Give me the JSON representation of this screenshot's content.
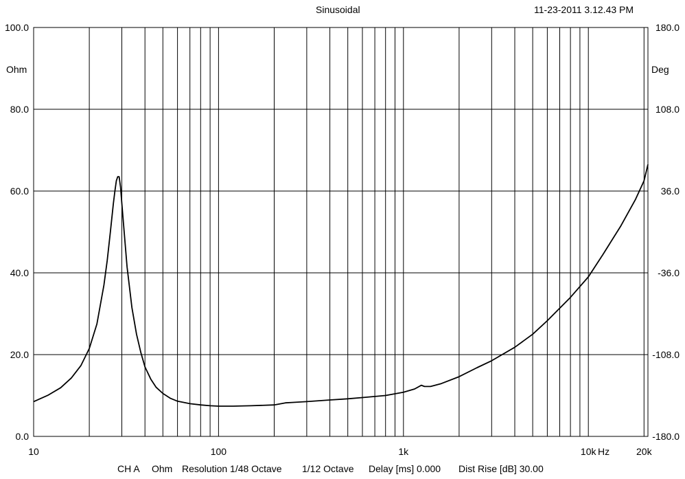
{
  "header": {
    "mode": "Sinusoidal",
    "timestamp": "11-23-2011 3.12.43 PM"
  },
  "axes": {
    "left_unit": "Ohm",
    "right_unit": "Deg",
    "x_unit": "Hz"
  },
  "footer": {
    "channel": "CH A",
    "unit": "Ohm",
    "resolution": "Resolution 1/48 Octave",
    "smoothing": "1/12 Octave",
    "delay": "Delay [ms] 0.000",
    "dist_rise": "Dist Rise [dB] 30.00"
  },
  "colors": {
    "background": "#ffffff",
    "grid": "#000000",
    "curve": "#000000"
  },
  "chart_data": {
    "type": "line",
    "xscale": "log",
    "xlim": [
      10,
      21000
    ],
    "ylim": [
      0,
      100
    ],
    "y2lim": [
      -180,
      180
    ],
    "grid": true,
    "xticks": [
      {
        "value": 10,
        "label": "10"
      },
      {
        "value": 100,
        "label": "100"
      },
      {
        "value": 1000,
        "label": "1k"
      },
      {
        "value": 10000,
        "label": "10k"
      },
      {
        "value": 20000,
        "label": "20k"
      }
    ],
    "yticks": [
      {
        "value": 0,
        "label": "0.0"
      },
      {
        "value": 20,
        "label": "20.0"
      },
      {
        "value": 40,
        "label": "40.0"
      },
      {
        "value": 60,
        "label": "60.0"
      },
      {
        "value": 80,
        "label": "80.0"
      },
      {
        "value": 100,
        "label": "100.0"
      }
    ],
    "y2ticks": [
      {
        "value": -180,
        "label": "-180.0"
      },
      {
        "value": -108,
        "label": "-108.0"
      },
      {
        "value": -36,
        "label": "-36.0"
      },
      {
        "value": 36,
        "label": "36.0"
      },
      {
        "value": 108,
        "label": "108.0"
      },
      {
        "value": 180,
        "label": "180.0"
      }
    ],
    "series": [
      {
        "name": "",
        "x": [
          10,
          12,
          14,
          16,
          18,
          20,
          22,
          24,
          25,
          26,
          27,
          27.5,
          28,
          28.5,
          29,
          29.5,
          30,
          31,
          32,
          34,
          36,
          38,
          40,
          43,
          46,
          50,
          55,
          60,
          70,
          80,
          90,
          100,
          120,
          150,
          200,
          230,
          250,
          300,
          400,
          500,
          600,
          800,
          1000,
          1150,
          1250,
          1300,
          1400,
          1600,
          2000,
          2500,
          3000,
          4000,
          5000,
          6000,
          8000,
          10000,
          12000,
          15000,
          18000,
          20000,
          21000
        ],
        "values": [
          8.5,
          10.1,
          11.9,
          14.3,
          17.3,
          21.5,
          27.5,
          37.0,
          43.0,
          50.0,
          57.0,
          60.0,
          62.5,
          63.5,
          63.5,
          61.0,
          57.0,
          49.0,
          41.5,
          31.5,
          25.0,
          20.5,
          17.0,
          14.0,
          12.0,
          10.5,
          9.3,
          8.6,
          8.0,
          7.7,
          7.5,
          7.4,
          7.4,
          7.5,
          7.7,
          8.2,
          8.3,
          8.5,
          8.9,
          9.2,
          9.5,
          10.0,
          10.8,
          11.6,
          12.5,
          12.2,
          12.2,
          12.9,
          14.6,
          16.8,
          18.5,
          21.8,
          25.0,
          28.3,
          34.0,
          39.0,
          44.5,
          51.5,
          58.0,
          62.5,
          66.5
        ]
      }
    ]
  }
}
